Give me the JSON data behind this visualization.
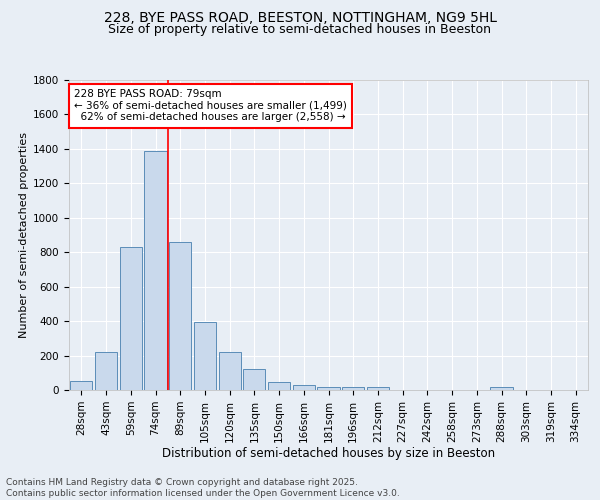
{
  "title": "228, BYE PASS ROAD, BEESTON, NOTTINGHAM, NG9 5HL",
  "subtitle": "Size of property relative to semi-detached houses in Beeston",
  "xlabel": "Distribution of semi-detached houses by size in Beeston",
  "ylabel": "Number of semi-detached properties",
  "categories": [
    "28sqm",
    "43sqm",
    "59sqm",
    "74sqm",
    "89sqm",
    "105sqm",
    "120sqm",
    "135sqm",
    "150sqm",
    "166sqm",
    "181sqm",
    "196sqm",
    "212sqm",
    "227sqm",
    "242sqm",
    "258sqm",
    "273sqm",
    "288sqm",
    "303sqm",
    "319sqm",
    "334sqm"
  ],
  "values": [
    50,
    220,
    830,
    1390,
    860,
    395,
    220,
    120,
    45,
    30,
    20,
    15,
    15,
    0,
    0,
    0,
    0,
    20,
    0,
    0,
    0
  ],
  "bar_color": "#c9d9ec",
  "bar_edge_color": "#5b8db8",
  "vline_x": 3.5,
  "vline_color": "red",
  "annotation_text": "228 BYE PASS ROAD: 79sqm\n← 36% of semi-detached houses are smaller (1,499)\n  62% of semi-detached houses are larger (2,558) →",
  "annotation_box_color": "white",
  "annotation_box_edge_color": "red",
  "ylim": [
    0,
    1800
  ],
  "yticks": [
    0,
    200,
    400,
    600,
    800,
    1000,
    1200,
    1400,
    1600,
    1800
  ],
  "bg_color": "#e8eef5",
  "plot_bg_color": "#e8eef5",
  "footer_line1": "Contains HM Land Registry data © Crown copyright and database right 2025.",
  "footer_line2": "Contains public sector information licensed under the Open Government Licence v3.0.",
  "title_fontsize": 10,
  "subtitle_fontsize": 9,
  "xlabel_fontsize": 8.5,
  "ylabel_fontsize": 8,
  "tick_fontsize": 7.5,
  "annotation_fontsize": 7.5,
  "footer_fontsize": 6.5
}
